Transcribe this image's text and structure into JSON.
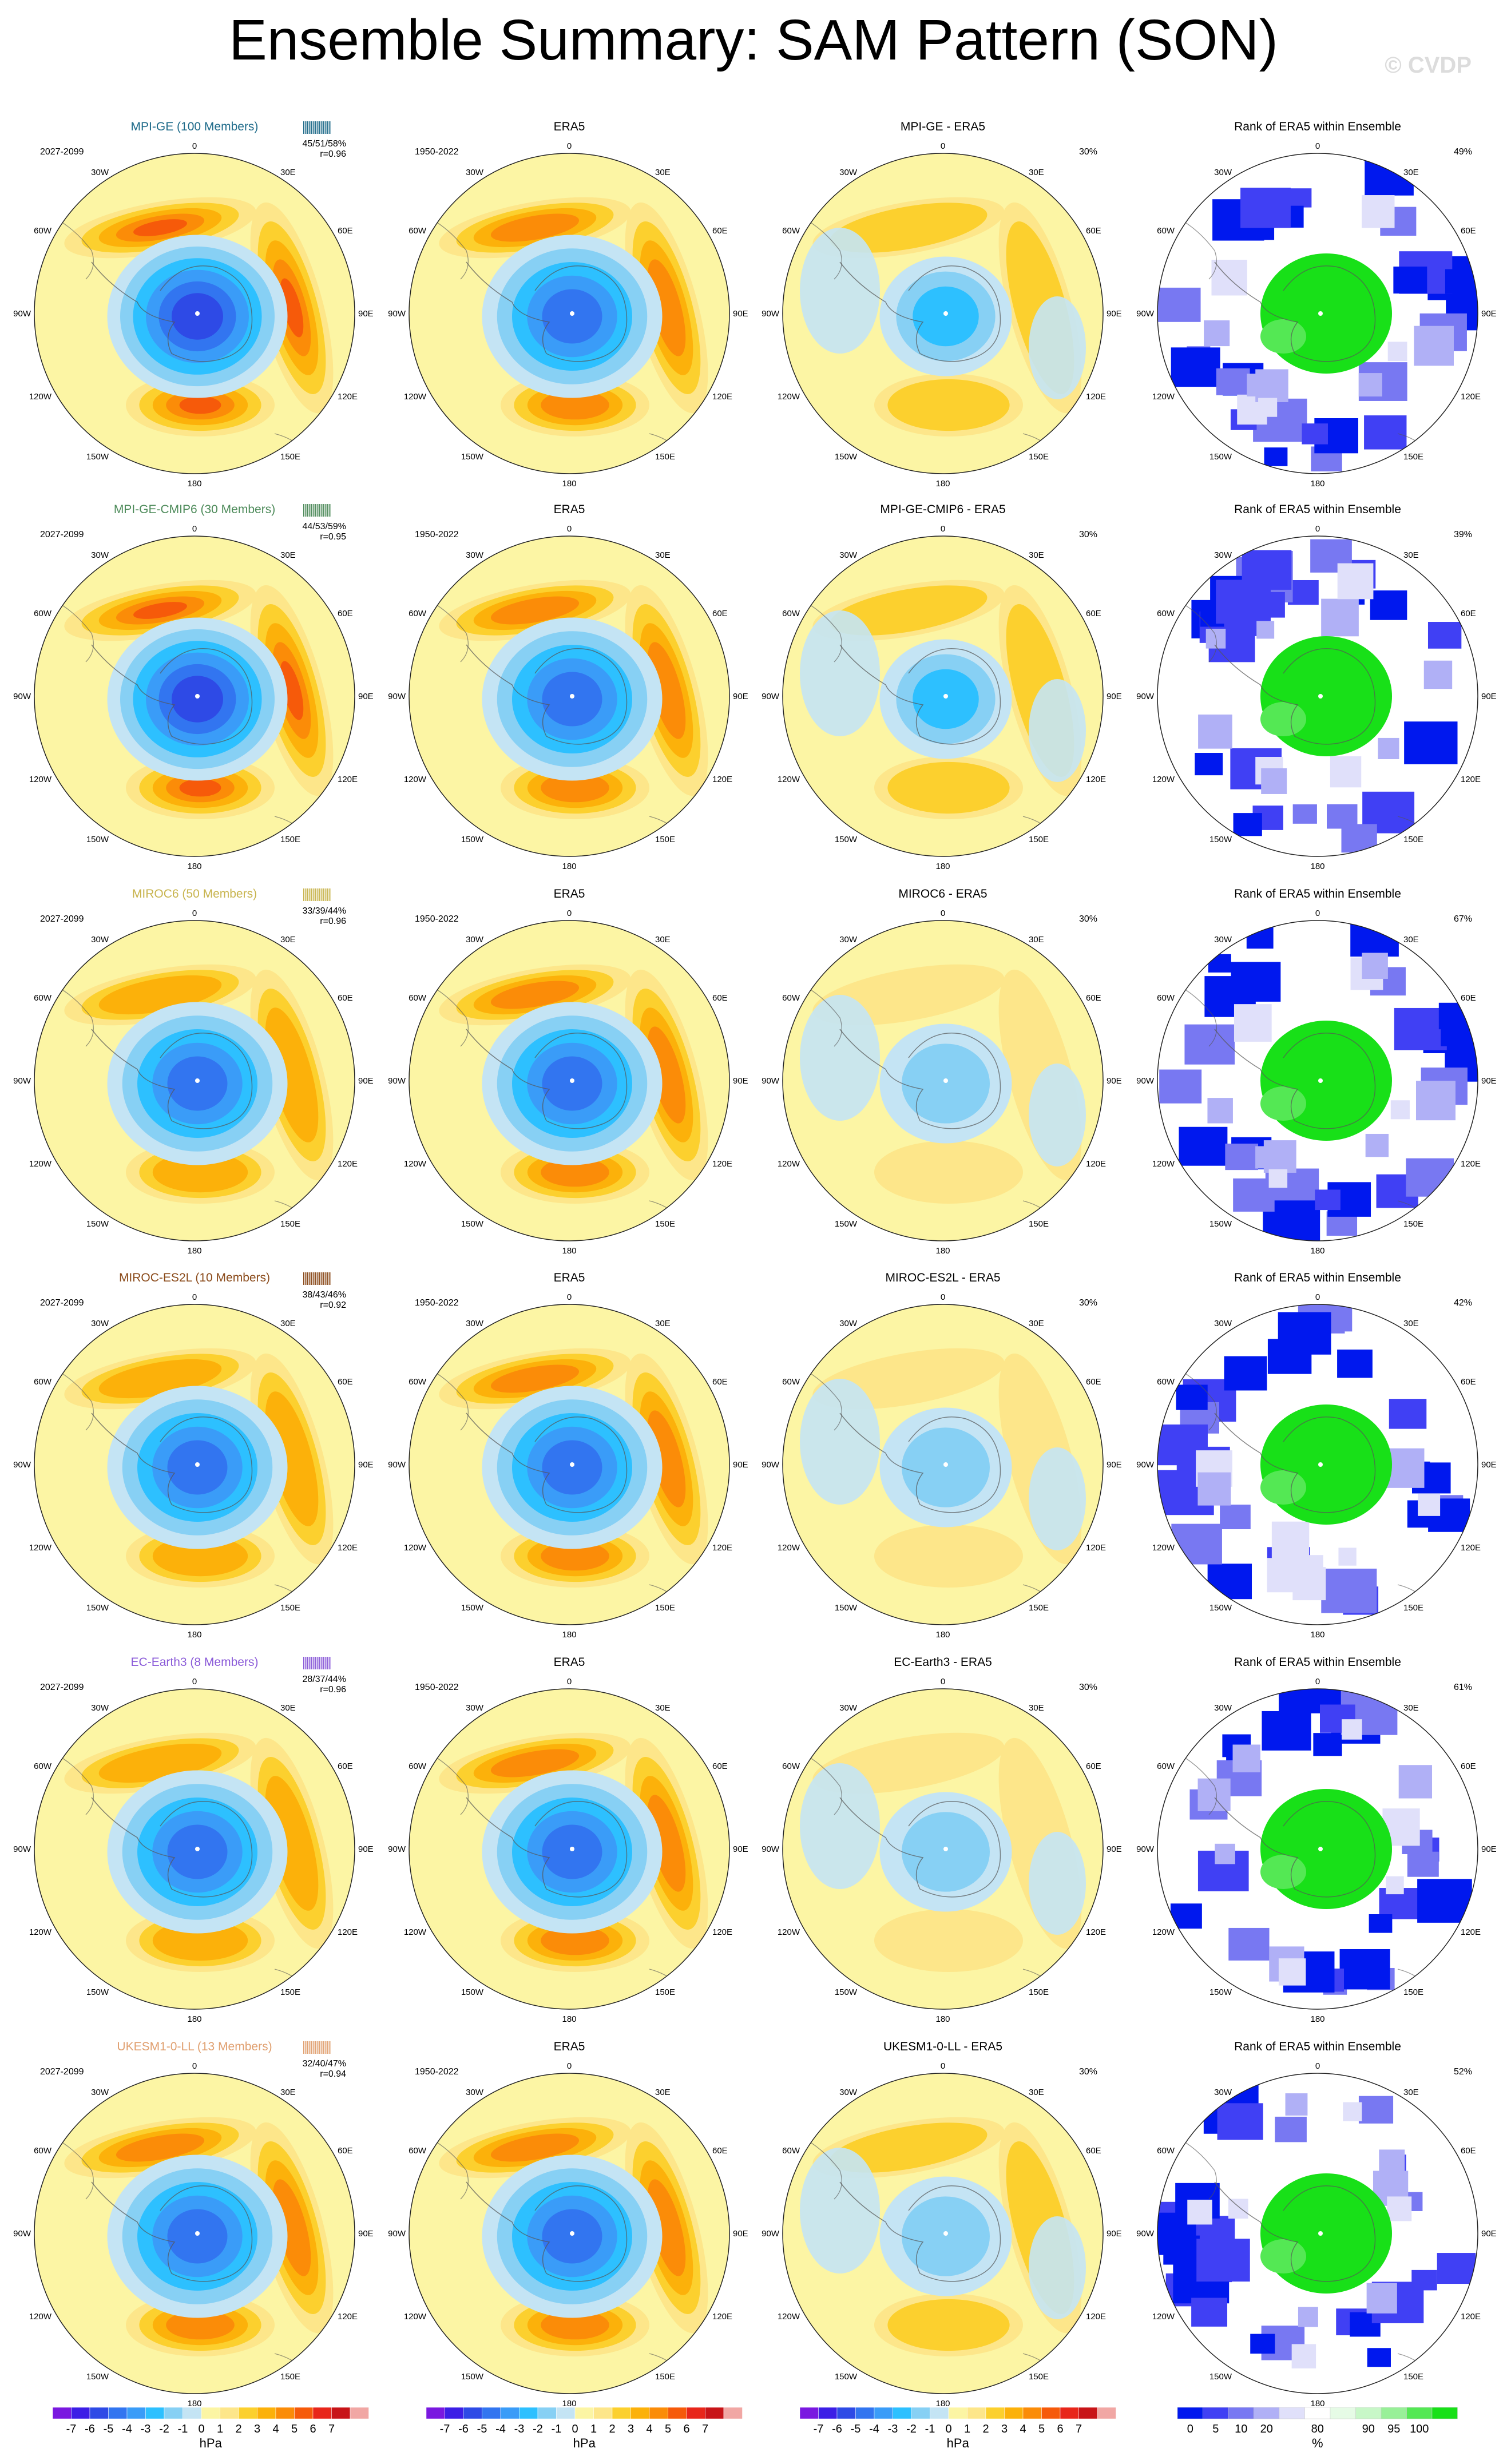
{
  "title": "Ensemble Summary: SAM Pattern (SON)",
  "watermark": "© CVDP",
  "colors": {
    "pressure_levels": [
      "#7a18e0",
      "#3c1ee6",
      "#2e4ae6",
      "#3275f0",
      "#3a9cf8",
      "#2dc0ff",
      "#87d0f4",
      "#c4e4f4",
      "#fcf5a4",
      "#fde68a",
      "#fcd02e",
      "#fcb10a",
      "#fb8c08",
      "#f65a0a",
      "#e8261a",
      "#c81418",
      "#f1a7a4"
    ],
    "rank_levels": [
      "#0018ee",
      "#4040f4",
      "#7878f2",
      "#b0b0f6",
      "#e0e0fa",
      "#ffffff",
      "#e6fbe6",
      "#c8f7c8",
      "#98f098",
      "#54e854",
      "#18e018"
    ],
    "ocean_zero": "#fcf5a4",
    "land_outline": "#555555"
  },
  "colorbars": {
    "pressure": {
      "labels": [
        "-7",
        "-6",
        "-5",
        "-4",
        "-3",
        "-2",
        "-1",
        "0",
        "1",
        "2",
        "3",
        "4",
        "5",
        "6",
        "7"
      ],
      "unit": "hPa"
    },
    "rank": {
      "labels": [
        "0",
        "5",
        "10",
        "20",
        "80",
        "90",
        "95",
        "100"
      ],
      "unit": "%"
    }
  },
  "map_labels": {
    "top": "0",
    "bottom": "180",
    "left_upper": "60W",
    "left_mid": "90W",
    "left_lower": "120W",
    "right_upper": "60E",
    "right_mid": "90E",
    "right_lower": "120E",
    "tl": "30W",
    "tr": "30E",
    "bl": "150W",
    "br": "150E"
  },
  "chart_data": [
    {
      "type": "heatmap",
      "row": 1,
      "panel": "model",
      "title": "MPI-GE (100 Members)",
      "title_color": "#1f6b8a",
      "period": "2027-2099",
      "stats": "45/51/58%",
      "corr": "r=0.96",
      "anomaly_range_hPa": [
        -6,
        5
      ]
    },
    {
      "type": "heatmap",
      "row": 1,
      "panel": "obs",
      "title": "ERA5",
      "period": "1950-2022",
      "anomaly_range_hPa": [
        -5,
        4
      ]
    },
    {
      "type": "heatmap",
      "row": 1,
      "panel": "difference",
      "title": "MPI-GE - ERA5",
      "stat": "30%",
      "anomaly_range_hPa": [
        -3,
        2
      ]
    },
    {
      "type": "heatmap",
      "row": 1,
      "panel": "rank",
      "title": "Rank of ERA5 within Ensemble",
      "stat": "49%"
    },
    {
      "type": "heatmap",
      "row": 2,
      "panel": "model",
      "title": "MPI-GE-CMIP6 (30 Members)",
      "title_color": "#4c8a59",
      "period": "2027-2099",
      "stats": "44/53/59%",
      "corr": "r=0.95",
      "anomaly_range_hPa": [
        -6,
        5
      ]
    },
    {
      "type": "heatmap",
      "row": 2,
      "panel": "obs",
      "title": "ERA5",
      "period": "1950-2022",
      "anomaly_range_hPa": [
        -5,
        4
      ]
    },
    {
      "type": "heatmap",
      "row": 2,
      "panel": "difference",
      "title": "MPI-GE-CMIP6 - ERA5",
      "stat": "30%",
      "anomaly_range_hPa": [
        -3,
        2
      ]
    },
    {
      "type": "heatmap",
      "row": 2,
      "panel": "rank",
      "title": "Rank of ERA5 within Ensemble",
      "stat": "39%"
    },
    {
      "type": "heatmap",
      "row": 3,
      "panel": "model",
      "title": "MIROC6 (50 Members)",
      "title_color": "#c8b44e",
      "period": "2027-2099",
      "stats": "33/39/44%",
      "corr": "r=0.96",
      "anomaly_range_hPa": [
        -5,
        3
      ]
    },
    {
      "type": "heatmap",
      "row": 3,
      "panel": "obs",
      "title": "ERA5",
      "period": "1950-2022",
      "anomaly_range_hPa": [
        -5,
        4
      ]
    },
    {
      "type": "heatmap",
      "row": 3,
      "panel": "difference",
      "title": "MIROC6 - ERA5",
      "stat": "30%",
      "anomaly_range_hPa": [
        -2,
        1
      ]
    },
    {
      "type": "heatmap",
      "row": 3,
      "panel": "rank",
      "title": "Rank of ERA5 within Ensemble",
      "stat": "67%"
    },
    {
      "type": "heatmap",
      "row": 4,
      "panel": "model",
      "title": "MIROC-ES2L (10 Members)",
      "title_color": "#8a4a1a",
      "period": "2027-2099",
      "stats": "38/43/46%",
      "corr": "r=0.92",
      "anomaly_range_hPa": [
        -5,
        3
      ]
    },
    {
      "type": "heatmap",
      "row": 4,
      "panel": "obs",
      "title": "ERA5",
      "period": "1950-2022",
      "anomaly_range_hPa": [
        -5,
        4
      ]
    },
    {
      "type": "heatmap",
      "row": 4,
      "panel": "difference",
      "title": "MIROC-ES2L - ERA5",
      "stat": "30%",
      "anomaly_range_hPa": [
        -2,
        1
      ]
    },
    {
      "type": "heatmap",
      "row": 4,
      "panel": "rank",
      "title": "Rank of ERA5 within Ensemble",
      "stat": "42%"
    },
    {
      "type": "heatmap",
      "row": 5,
      "panel": "model",
      "title": "EC-Earth3 (8 Members)",
      "title_color": "#8a5ad8",
      "period": "2027-2099",
      "stats": "28/37/44%",
      "corr": "r=0.96",
      "anomaly_range_hPa": [
        -5,
        3
      ]
    },
    {
      "type": "heatmap",
      "row": 5,
      "panel": "obs",
      "title": "ERA5",
      "period": "1950-2022",
      "anomaly_range_hPa": [
        -5,
        4
      ]
    },
    {
      "type": "heatmap",
      "row": 5,
      "panel": "difference",
      "title": "EC-Earth3 - ERA5",
      "stat": "30%",
      "anomaly_range_hPa": [
        -2,
        1
      ]
    },
    {
      "type": "heatmap",
      "row": 5,
      "panel": "rank",
      "title": "Rank of ERA5 within Ensemble",
      "stat": "61%"
    },
    {
      "type": "heatmap",
      "row": 6,
      "panel": "model",
      "title": "UKESM1-0-LL (13 Members)",
      "title_color": "#e0a070",
      "period": "2027-2099",
      "stats": "32/40/47%",
      "corr": "r=0.94",
      "anomaly_range_hPa": [
        -5,
        4
      ]
    },
    {
      "type": "heatmap",
      "row": 6,
      "panel": "obs",
      "title": "ERA5",
      "period": "1950-2022",
      "anomaly_range_hPa": [
        -5,
        4
      ]
    },
    {
      "type": "heatmap",
      "row": 6,
      "panel": "difference",
      "title": "UKESM1-0-LL - ERA5",
      "stat": "30%",
      "anomaly_range_hPa": [
        -2,
        2
      ]
    },
    {
      "type": "heatmap",
      "row": 6,
      "panel": "rank",
      "title": "Rank of ERA5 within Ensemble",
      "stat": "52%"
    }
  ]
}
